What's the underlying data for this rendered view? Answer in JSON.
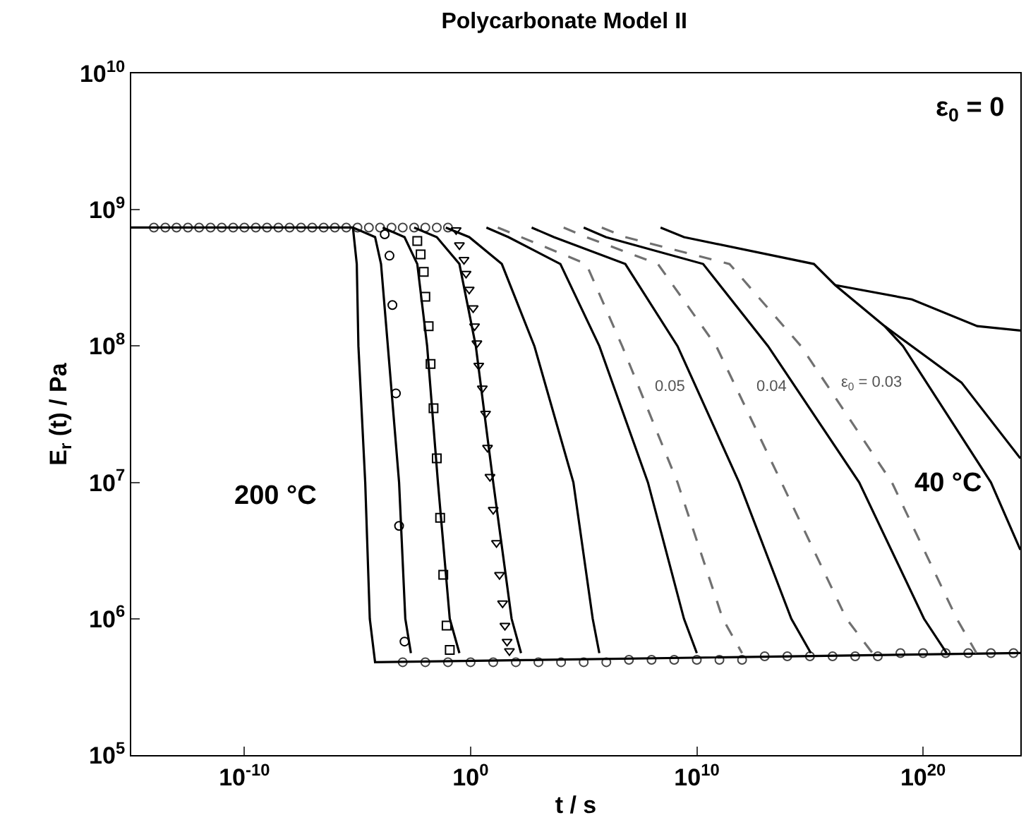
{
  "chart_data": {
    "type": "line",
    "title": "Polycarbonate Model II",
    "xlabel": "t / s",
    "ylabel": "E$_{r}$ (t) / Pa",
    "log": "xy",
    "xlim": [
      1e-15,
      2e+24
    ],
    "ylim": [
      100000.0,
      10000000000.0
    ],
    "xticks": [
      {
        "value": 1e-10,
        "label": "10$^{-10}$"
      },
      {
        "value": 1,
        "label": "10$^{0}$"
      },
      {
        "value": 10000000000.0,
        "label": "10$^{10}$"
      },
      {
        "value": 1e+20,
        "label": "10$^{20}$"
      }
    ],
    "yticks": [
      {
        "value": 100000.0,
        "label": "10$^{5}$"
      },
      {
        "value": 1000000.0,
        "label": "10$^{6}$"
      },
      {
        "value": 10000000.0,
        "label": "10$^{7}$"
      },
      {
        "value": 100000000.0,
        "label": "10$^{8}$"
      },
      {
        "value": 1000000000.0,
        "label": "10$^{9}$"
      },
      {
        "value": 10000000000.0,
        "label": "10$^{10}$"
      }
    ],
    "annotations": [
      "ε$_{0}$ = 0",
      "200 °C",
      "40 °C",
      "0.05",
      "0.04",
      "ε$_{0}$ = 0.03"
    ],
    "series": [
      {
        "type": "scatter",
        "marker": "circle",
        "color": "#444444",
        "x": [
          1e-14,
          3.2e-14,
          1e-13,
          3.2e-13,
          1e-12,
          3.2e-12,
          1e-11,
          3.2e-11,
          1e-10,
          3.2e-10,
          1e-09,
          3.2e-09,
          1e-08,
          3.2e-08,
          1e-07,
          3.2e-07,
          1e-06,
          3.2e-06,
          1e-05,
          3.2e-05,
          0.0001,
          0.00032,
          0.001,
          0.0032,
          0.01,
          0.032,
          0.1
        ],
        "values": [
          740000000.0,
          740000000.0,
          740000000.0,
          740000000.0,
          740000000.0,
          740000000.0,
          740000000.0,
          740000000.0,
          740000000.0,
          740000000.0,
          740000000.0,
          740000000.0,
          740000000.0,
          740000000.0,
          740000000.0,
          740000000.0,
          740000000.0,
          740000000.0,
          740000000.0,
          740000000.0,
          740000000.0,
          740000000.0,
          740000000.0,
          740000000.0,
          740000000.0,
          740000000.0,
          740000000.0
        ]
      },
      {
        "type": "scatter",
        "marker": "circle",
        "color": "#444444",
        "x": [
          0.001,
          0.01,
          0.1,
          1,
          10,
          100.0,
          1000.0,
          10000.0,
          100000.0,
          1000000.0,
          10000000.0,
          100000000.0,
          1000000000.0,
          10000000000.0,
          100000000000.0,
          1000000000000.0,
          10000000000000.0,
          100000000000000.0,
          1000000000000000.0,
          1e+16,
          1e+17,
          1e+18,
          1e+19,
          1e+20,
          1e+21,
          1e+22,
          1e+23,
          1e+24
        ],
        "values": [
          480000.0,
          480000.0,
          480000.0,
          480000.0,
          480000.0,
          480000.0,
          480000.0,
          480000.0,
          480000.0,
          480000.0,
          500000.0,
          500000.0,
          500000.0,
          500000.0,
          500000.0,
          500000.0,
          530000.0,
          530000.0,
          530000.0,
          530000.0,
          530000.0,
          530000.0,
          560000.0,
          560000.0,
          560000.0,
          560000.0,
          560000.0,
          560000.0
        ]
      },
      {
        "color": "#000000",
        "x": [
          1e-15,
          6.3e-06,
          9.3e-06,
          1.1e-05,
          2.2e-05,
          3.5e-05,
          6e-05,
          2e+24
        ],
        "values": [
          740000000.0,
          740000000.0,
          400000000.0,
          100000000.0,
          10000000.0,
          1000000.0,
          480000.0,
          560000.0
        ]
      },
      {
        "color": "#000000",
        "x": [
          6.3e-06,
          6e-05,
          0.00011,
          0.00022,
          0.00069,
          0.0013,
          0.0023
        ],
        "values": [
          740000000.0,
          630000000.0,
          400000000.0,
          100000000.0,
          10000000.0,
          1000000.0,
          560000.0
        ]
      },
      {
        "color": "#000000",
        "x": [
          0.00013,
          0.0012,
          0.0044,
          0.012,
          0.036,
          0.12,
          0.32
        ],
        "values": [
          740000000.0,
          630000000.0,
          400000000.0,
          100000000.0,
          10000000.0,
          1000000.0,
          560000.0
        ]
      },
      {
        "color": "#000000",
        "x": [
          0.0032,
          0.032,
          0.32,
          1.7,
          10,
          65,
          170
        ],
        "values": [
          740000000.0,
          630000000.0,
          400000000.0,
          100000000.0,
          10000000.0,
          1000000.0,
          560000.0
        ]
      },
      {
        "color": "#000000",
        "x": [
          0.08,
          0.87,
          24,
          660,
          35000.0,
          250000.0,
          490000.0
        ],
        "values": [
          740000000.0,
          630000000.0,
          400000000.0,
          100000000.0,
          10000000.0,
          1000000.0,
          560000.0
        ]
      },
      {
        "color": "#000000",
        "x": [
          5,
          47,
          9300.0,
          490000.0,
          69000000.0,
          2700000000.0,
          10000000000.0
        ],
        "values": [
          740000000.0,
          630000000.0,
          400000000.0,
          100000000.0,
          10000000.0,
          1000000.0,
          560000.0
        ]
      },
      {
        "color": "#707070",
        "line_style": "dashed",
        "x": [
          16,
          170,
          130000.0,
          5000000.0,
          1400000000.0,
          140000000000.0,
          1000000000000.0
        ],
        "values": [
          740000000.0,
          630000000.0,
          400000000.0,
          100000000.0,
          10000000.0,
          1000000.0,
          560000.0
        ]
      },
      {
        "color": "#000000",
        "x": [
          500,
          4800.0,
          6900000.0,
          1400000000.0,
          740000000000.0,
          150000000000000.0,
          1100000000000000.0
        ],
        "values": [
          740000000.0,
          630000000.0,
          400000000.0,
          100000000.0,
          10000000.0,
          1000000.0,
          560000.0
        ]
      },
      {
        "color": "#707070",
        "line_style": "dashed",
        "x": [
          13000.0,
          130000.0,
          190000000.0,
          72000000000.0,
          55000000000000.0,
          4.1e+16,
          5.8e+17
        ],
        "values": [
          740000000.0,
          630000000.0,
          400000000.0,
          100000000.0,
          10000000.0,
          1000000.0,
          560000.0
        ]
      },
      {
        "color": "#000000",
        "x": [
          100000.0,
          950000.0,
          19000000000.0,
          14000000000000.0,
          1.5e+17,
          1.1e+20,
          1.1e+21
        ],
        "values": [
          740000000.0,
          630000000.0,
          400000000.0,
          100000000.0,
          10000000.0,
          1000000.0,
          560000.0
        ]
      },
      {
        "color": "#707070",
        "line_style": "dashed",
        "x": [
          630000.0,
          6900000.0,
          280000000000.0,
          400000000000000.0,
          4.2e+18,
          3.1e+21,
          2.3e+22
        ],
        "values": [
          740000000.0,
          630000000.0,
          400000000.0,
          100000000.0,
          10000000.0,
          1000000.0,
          560000.0
        ]
      },
      {
        "color": "#000000",
        "x": [
          250000000.0,
          2700000000.0,
          1500000000000000.0,
          1.3e+16,
          2e+18,
          1.3e+19,
          1e+23,
          2e+24
        ],
        "values": [
          740000000.0,
          630000000.0,
          400000000.0,
          280000000.0,
          140000000.0,
          100000000.0,
          10000000.0,
          3200000.0
        ]
      },
      {
        "color": "#000000",
        "x": [
          1.3e+16,
          3.2e+19,
          2.5e+22,
          2e+24
        ],
        "values": [
          280000000.0,
          220000000.0,
          140000000.0,
          130000000.0
        ]
      },
      {
        "color": "#000000",
        "x": [
          2e+18,
          5e+21,
          2e+24
        ],
        "values": [
          140000000.0,
          54000000.0,
          15000000.0
        ]
      },
      {
        "type": "scatter",
        "marker": "circle",
        "color": "#000000",
        "x": [
          0.00016,
          0.00026,
          0.00035,
          0.0005,
          0.00069,
          0.0012
        ],
        "values": [
          660000000.0,
          460000000.0,
          200000000.0,
          45000000.0,
          4800000.0,
          680000.0
        ]
      },
      {
        "type": "scatter",
        "marker": "square",
        "color": "#000000",
        "x": [
          0.0044,
          0.0062,
          0.0085,
          0.01,
          0.014,
          0.017,
          0.023,
          0.032,
          0.045,
          0.062,
          0.087,
          0.12
        ],
        "values": [
          590000000.0,
          470000000.0,
          350000000.0,
          230000000.0,
          140000000.0,
          74000000.0,
          35000000.0,
          15000000.0,
          5500000.0,
          2100000.0,
          890000.0,
          590000.0
        ]
      },
      {
        "type": "scatter",
        "marker": "triangle",
        "color": "#000000",
        "x": [
          0.23,
          0.32,
          0.51,
          0.63,
          0.87,
          1.3,
          1.5,
          1.9,
          2.3,
          3.3,
          4.6,
          5.6,
          7.2,
          10,
          14,
          19,
          26,
          33,
          41,
          52
        ],
        "values": [
          710000000.0,
          550000000.0,
          430000000.0,
          340000000.0,
          260000000.0,
          190000000.0,
          140000000.0,
          105000000.0,
          72000000.0,
          49000000.0,
          32000000.0,
          18000000.0,
          11000000.0,
          6300000.0,
          3600000.0,
          2100000.0,
          1300000.0,
          890000.0,
          680000.0,
          580000.0
        ]
      }
    ]
  }
}
